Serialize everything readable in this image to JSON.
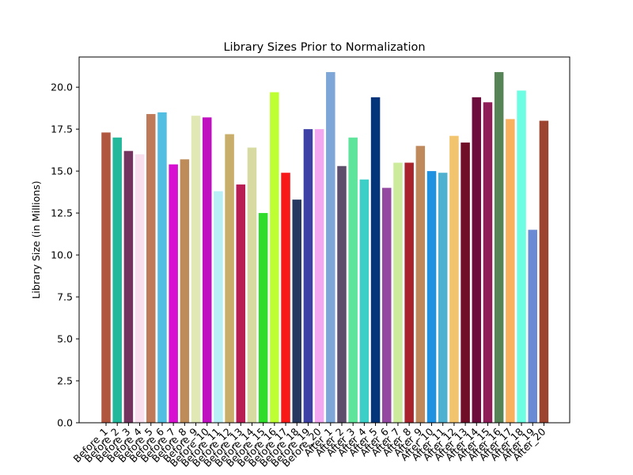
{
  "chart_data": {
    "type": "bar",
    "title": "Library Sizes Prior to Normalization",
    "xlabel": "",
    "ylabel": "Library Size (in Millions)",
    "ylim": [
      0,
      21.8
    ],
    "yticks": [
      "0.0",
      "2.5",
      "5.0",
      "7.5",
      "10.0",
      "12.5",
      "15.0",
      "17.5",
      "20.0"
    ],
    "grid": false,
    "categories": [
      "Before_1",
      "Before_2",
      "Before_3",
      "Before_4",
      "Before_5",
      "Before_6",
      "Before_7",
      "Before_8",
      "Before_9",
      "Before_10",
      "Before_11",
      "Before_12",
      "Before_13",
      "Before_14",
      "Before_15",
      "Before_16",
      "Before_17",
      "Before_18",
      "Before_19",
      "Before_20",
      "After_1",
      "After_2",
      "After_3",
      "After_4",
      "After_5",
      "After_6",
      "After_7",
      "After_8",
      "After_9",
      "After_10",
      "After_11",
      "After_12",
      "After_13",
      "After_14",
      "After_15",
      "After_16",
      "After_17",
      "After_18",
      "After_19",
      "After_20"
    ],
    "values": [
      17.3,
      17.0,
      16.2,
      16.0,
      18.4,
      18.5,
      15.4,
      15.7,
      18.3,
      18.2,
      13.8,
      17.2,
      14.2,
      16.4,
      12.5,
      19.7,
      14.9,
      13.3,
      17.5,
      17.5,
      20.9,
      15.3,
      17.0,
      14.5,
      19.4,
      14.0,
      15.5,
      15.5,
      16.5,
      15.0,
      14.9,
      17.1,
      16.7,
      19.4,
      19.1,
      20.9,
      18.1,
      19.8,
      11.5,
      18.0
    ],
    "colors": [
      "#b0553e",
      "#23b79b",
      "#733560",
      "#f9dfee",
      "#bf7b59",
      "#52bfe2",
      "#d60fd1",
      "#bd8c58",
      "#e2e8b5",
      "#c011c1",
      "#b8eef5",
      "#c8ae6a",
      "#b81d53",
      "#d7dba2",
      "#2fdc2a",
      "#beff33",
      "#f91818",
      "#263860",
      "#3d41a5",
      "#f3a7f1",
      "#7ea6d6",
      "#5d4f6c",
      "#5fe59b",
      "#3ccfc8",
      "#04357a",
      "#944aa1",
      "#ccec9c",
      "#a8232c",
      "#c0895c",
      "#1e91e1",
      "#4fb1cf",
      "#f1c46d",
      "#700e28",
      "#6c0d3e",
      "#8f1d58",
      "#578456",
      "#f9b15e",
      "#6dfde2",
      "#6a8ad4",
      "#9d4431"
    ]
  }
}
